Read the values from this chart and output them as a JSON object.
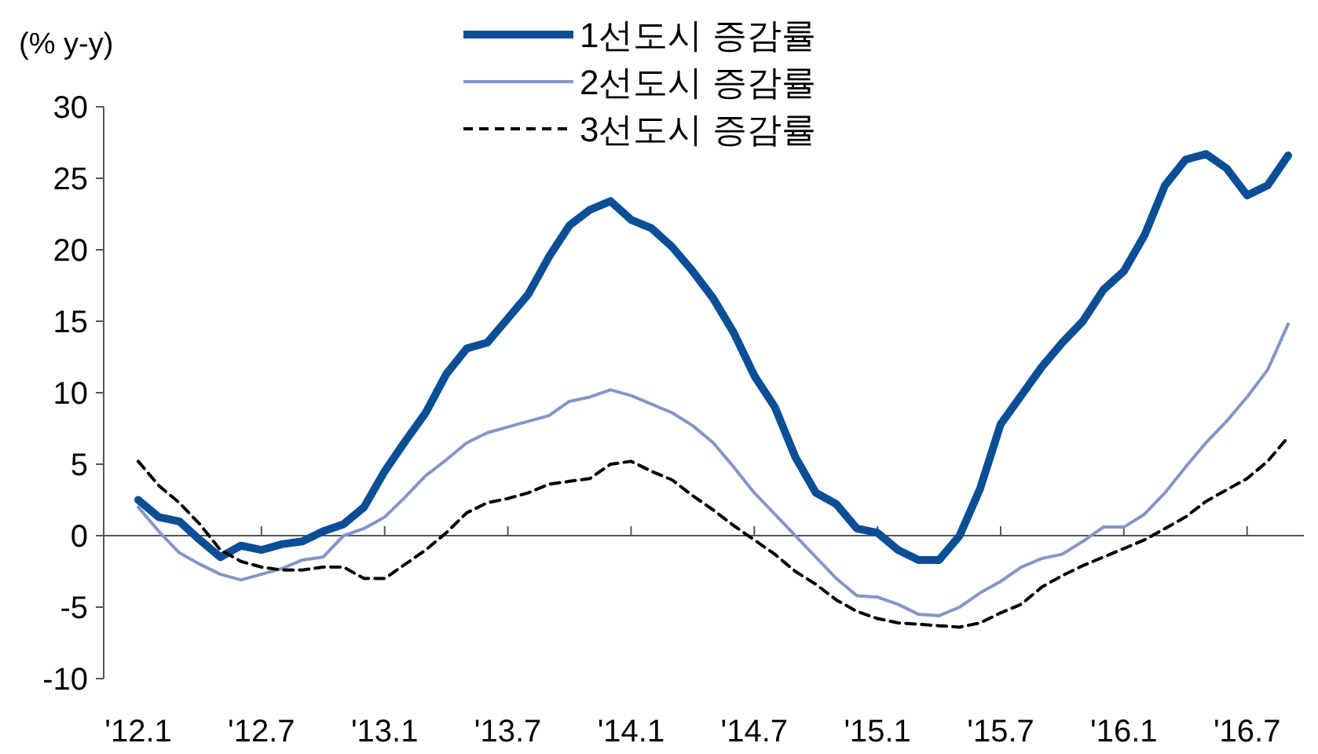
{
  "chart_data": {
    "type": "line",
    "ylabel": "(% y-y)",
    "categories": [
      "'12.1",
      null,
      null,
      null,
      null,
      null,
      "'12.7",
      null,
      null,
      null,
      null,
      null,
      "'13.1",
      null,
      null,
      null,
      null,
      null,
      "'13.7",
      null,
      null,
      null,
      null,
      null,
      "'14.1",
      null,
      null,
      null,
      null,
      null,
      "'14.7",
      null,
      null,
      null,
      null,
      null,
      "'15.1",
      null,
      null,
      null,
      null,
      null,
      "'15.7",
      null,
      null,
      null,
      null,
      null,
      "'16.1",
      null,
      null,
      null,
      null,
      null,
      "'16.7",
      null,
      null
    ],
    "series": [
      {
        "name": "1선도시 증감률",
        "color": "#0a4f96",
        "line_style": "solid",
        "values": [
          2.5,
          1.3,
          1.0,
          -0.3,
          -1.5,
          -0.7,
          -1.0,
          -0.6,
          -0.4,
          0.3,
          0.8,
          2.0,
          4.5,
          6.6,
          8.6,
          11.3,
          13.1,
          13.5,
          15.2,
          16.9,
          19.5,
          21.7,
          22.8,
          23.4,
          22.1,
          21.5,
          20.2,
          18.5,
          16.6,
          14.2,
          11.2,
          9.0,
          5.5,
          3.0,
          2.2,
          0.5,
          0.2,
          -1.0,
          -1.7,
          -1.7,
          0.0,
          3.3,
          7.8,
          9.8,
          11.8,
          13.5,
          15.0,
          17.2,
          18.5,
          21.0,
          24.5,
          26.3,
          26.7,
          25.7,
          23.8,
          24.5,
          26.6
        ]
      },
      {
        "name": "2선도시 증감률",
        "color": "#8496c8",
        "line_style": "solid",
        "values": [
          2.0,
          0.3,
          -1.2,
          -2.0,
          -2.7,
          -3.1,
          -2.7,
          -2.3,
          -1.7,
          -1.5,
          0.0,
          0.5,
          1.3,
          2.7,
          4.2,
          5.3,
          6.5,
          7.2,
          7.6,
          8.0,
          8.4,
          9.4,
          9.7,
          10.2,
          9.8,
          9.2,
          8.6,
          7.7,
          6.5,
          4.8,
          3.0,
          1.5,
          0.0,
          -1.5,
          -3.0,
          -4.2,
          -4.3,
          -4.8,
          -5.5,
          -5.6,
          -5.0,
          -4.0,
          -3.2,
          -2.2,
          -1.6,
          -1.3,
          -0.4,
          0.6,
          0.6,
          1.5,
          3.0,
          4.8,
          6.5,
          8.0,
          9.7,
          11.6,
          14.8
        ]
      },
      {
        "name": "3선도시 증감률",
        "color": "#000000",
        "line_style": "dashed",
        "values": [
          5.2,
          3.5,
          2.3,
          0.8,
          -1.0,
          -1.8,
          -2.2,
          -2.4,
          -2.4,
          -2.2,
          -2.2,
          -3.0,
          -3.0,
          -2.0,
          -1.0,
          0.2,
          1.6,
          2.3,
          2.6,
          3.0,
          3.6,
          3.8,
          4.0,
          5.0,
          5.2,
          4.5,
          3.9,
          2.8,
          1.8,
          0.7,
          -0.3,
          -1.3,
          -2.5,
          -3.4,
          -4.5,
          -5.3,
          -5.8,
          -6.1,
          -6.2,
          -6.3,
          -6.4,
          -6.1,
          -5.4,
          -4.8,
          -3.6,
          -2.8,
          -2.1,
          -1.5,
          -0.9,
          -0.3,
          0.5,
          1.3,
          2.4,
          3.2,
          4.0,
          5.2,
          6.9
        ]
      }
    ],
    "ylim": [
      -10,
      30
    ],
    "yticks": [
      -10,
      -5,
      0,
      5,
      10,
      15,
      20,
      25,
      30
    ],
    "legend": "top",
    "marker": "none"
  }
}
